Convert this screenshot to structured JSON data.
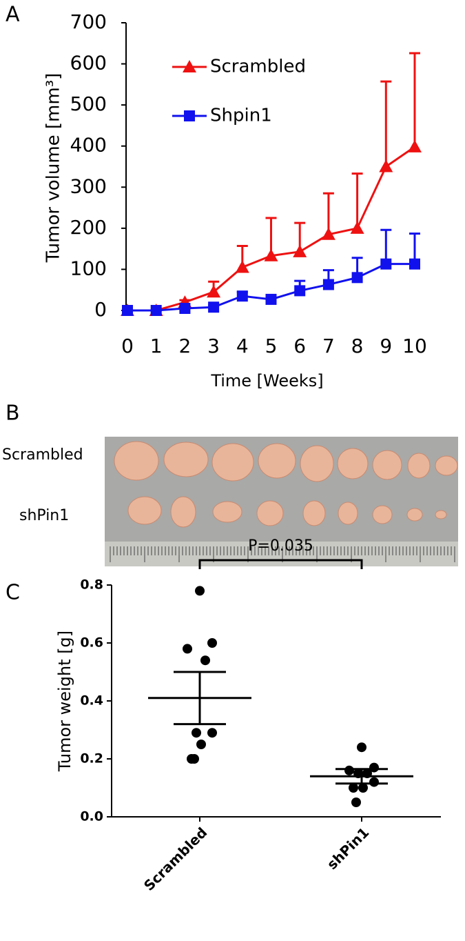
{
  "chart_data": [
    {
      "type": "line",
      "panel_label": "A",
      "ylabel": "Tumor volume [mm³]",
      "xlabel": "Time [Weeks]",
      "x": [
        0,
        1,
        2,
        3,
        4,
        5,
        6,
        7,
        8,
        9,
        10
      ],
      "xlim": [
        0,
        10
      ],
      "xticks": [
        0,
        1,
        2,
        3,
        4,
        5,
        6,
        7,
        8,
        9,
        10
      ],
      "ylim": [
        0,
        700
      ],
      "yticks": [
        0,
        100,
        200,
        300,
        400,
        500,
        600,
        700
      ],
      "legend": "upper-left",
      "series": [
        {
          "name": "Scrambled",
          "color": "#ee1111",
          "marker": "triangle",
          "values": [
            0,
            0,
            20,
            45,
            105,
            133,
            143,
            185,
            200,
            350,
            398
          ],
          "errors": [
            0,
            0,
            5,
            25,
            52,
            92,
            70,
            100,
            133,
            207,
            228
          ]
        },
        {
          "name": "Shpin1",
          "color": "#1111ee",
          "marker": "square",
          "values": [
            0,
            0,
            5,
            8,
            35,
            27,
            48,
            63,
            80,
            113,
            113
          ],
          "errors": [
            0,
            0,
            3,
            5,
            10,
            6,
            24,
            35,
            48,
            83,
            74
          ]
        }
      ]
    },
    {
      "type": "scatter",
      "panel_label": "C",
      "ylabel": "Tumor weight [g]",
      "categories": [
        "Scrambled",
        "shPin1"
      ],
      "ylim": [
        0,
        0.8
      ],
      "yticks": [
        {
          "value": 0,
          "label": "0.0"
        },
        0.2,
        0.4,
        0.6,
        0.8
      ],
      "color": "#000000",
      "series": [
        {
          "name": "Scrambled",
          "values": [
            0.78,
            0.6,
            0.58,
            0.54,
            0.29,
            0.29,
            0.25,
            0.2,
            0.2
          ],
          "mean": 0.41,
          "sem": 0.09
        },
        {
          "name": "shPin1",
          "values": [
            0.24,
            0.17,
            0.16,
            0.15,
            0.15,
            0.12,
            0.1,
            0.1,
            0.05
          ],
          "mean": 0.14,
          "sem": 0.025
        }
      ],
      "annotation": "P=0.035"
    }
  ],
  "photo": {
    "panel_label": "B",
    "row_labels": [
      "Scrambled",
      "shPin1"
    ]
  }
}
